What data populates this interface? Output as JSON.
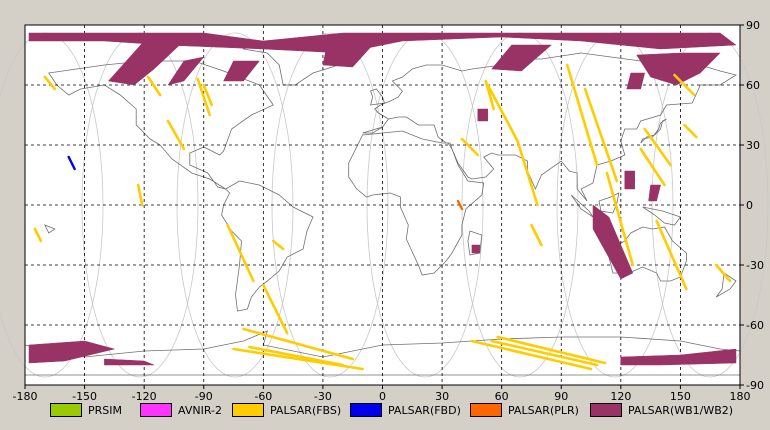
{
  "chart_data": {
    "type": "map",
    "projection": "equirectangular",
    "xlim": [
      -180,
      180
    ],
    "ylim": [
      -90,
      90
    ],
    "x_ticks": [
      "-180",
      "-150",
      "-120",
      "-90",
      "-60",
      "-30",
      "0",
      "30",
      "60",
      "90",
      "120",
      "150",
      "180"
    ],
    "y_ticks": [
      "90",
      "60",
      "30",
      "0",
      "-30",
      "-60",
      "-90"
    ],
    "grid": true,
    "legend": [
      {
        "label": "PRSIM",
        "color": "#99cc00"
      },
      {
        "label": "AVNIR-2",
        "color": "#ff33ff"
      },
      {
        "label": "PALSAR(FBS)",
        "color": "#ffcc00"
      },
      {
        "label": "PALSAR(FBD)",
        "color": "#0000ee"
      },
      {
        "label": "PALSAR(PLR)",
        "color": "#ff6600"
      },
      {
        "label": "PALSAR(WB1/WB2)",
        "color": "#993366"
      }
    ],
    "acquisitions": {
      "wb": [
        {
          "polygon": [
            [
              -178,
              86
            ],
            [
              -90,
              86
            ],
            [
              -60,
              82
            ],
            [
              -20,
              86
            ],
            [
              40,
              86
            ],
            [
              100,
              86
            ],
            [
              170,
              86
            ],
            [
              178,
              80
            ],
            [
              140,
              78
            ],
            [
              100,
              82
            ],
            [
              60,
              84
            ],
            [
              10,
              82
            ],
            [
              -20,
              76
            ],
            [
              -60,
              78
            ],
            [
              -110,
              80
            ],
            [
              -140,
              82
            ],
            [
              -178,
              82
            ]
          ]
        },
        {
          "polygon": [
            [
              -120,
              82
            ],
            [
              -100,
              82
            ],
            [
              -115,
              68
            ],
            [
              -125,
              60
            ],
            [
              -138,
              62
            ]
          ]
        },
        {
          "polygon": [
            [
              -100,
              72
            ],
            [
              -90,
              74
            ],
            [
              -100,
              62
            ],
            [
              -108,
              60
            ]
          ]
        },
        {
          "polygon": [
            [
              -75,
              72
            ],
            [
              -62,
              72
            ],
            [
              -70,
              62
            ],
            [
              -80,
              62
            ]
          ]
        },
        {
          "polygon": [
            [
              -28,
              80
            ],
            [
              -5,
              80
            ],
            [
              -15,
              69
            ],
            [
              -30,
              70
            ]
          ]
        },
        {
          "polygon": [
            [
              65,
              80
            ],
            [
              85,
              80
            ],
            [
              70,
              67
            ],
            [
              55,
              68
            ]
          ]
        },
        {
          "polygon": [
            [
              128,
              75
            ],
            [
              150,
              76
            ],
            [
              170,
              76
            ],
            [
              160,
              66
            ],
            [
              148,
              60
            ],
            [
              135,
              64
            ]
          ]
        },
        {
          "polygon": [
            [
              125,
              66
            ],
            [
              132,
              66
            ],
            [
              130,
              58
            ],
            [
              123,
              58
            ]
          ]
        },
        {
          "polygon": [
            [
              48,
              48
            ],
            [
              53,
              48
            ],
            [
              53,
              42
            ],
            [
              48,
              42
            ]
          ]
        },
        {
          "polygon": [
            [
              122,
              17
            ],
            [
              127,
              17
            ],
            [
              127,
              8
            ],
            [
              122,
              8
            ]
          ]
        },
        {
          "polygon": [
            [
              135,
              10
            ],
            [
              140,
              10
            ],
            [
              138,
              2
            ],
            [
              134,
              2
            ]
          ]
        },
        {
          "polygon": [
            [
              106,
              0
            ],
            [
              114,
              -6
            ],
            [
              126,
              -34
            ],
            [
              120,
              -37
            ],
            [
              106,
              -12
            ]
          ]
        },
        {
          "polygon": [
            [
              45,
              -20
            ],
            [
              49,
              -20
            ],
            [
              49,
              -24
            ],
            [
              45,
              -24
            ]
          ]
        },
        {
          "polygon": [
            [
              -178,
              -70
            ],
            [
              -150,
              -68
            ],
            [
              -135,
              -72
            ],
            [
              -160,
              -78
            ],
            [
              -178,
              -79
            ]
          ]
        },
        {
          "polygon": [
            [
              -140,
              -77
            ],
            [
              -120,
              -78
            ],
            [
              -115,
              -80
            ],
            [
              -140,
              -80
            ]
          ]
        },
        {
          "polygon": [
            [
              120,
              -76
            ],
            [
              150,
              -75
            ],
            [
              178,
              -72
            ],
            [
              178,
              -79
            ],
            [
              140,
              -80
            ],
            [
              120,
              -80
            ]
          ]
        }
      ],
      "fbs": [
        [
          [
            -170,
            64
          ],
          [
            -165,
            58
          ]
        ],
        [
          [
            -123,
            10
          ],
          [
            -121,
            0
          ]
        ],
        [
          [
            -118,
            64
          ],
          [
            -112,
            55
          ]
        ],
        [
          [
            -108,
            42
          ],
          [
            -100,
            28
          ]
        ],
        [
          [
            -93,
            63
          ],
          [
            -87,
            45
          ]
        ],
        [
          [
            -78,
            -10
          ],
          [
            -65,
            -38
          ]
        ],
        [
          [
            -60,
            -40
          ],
          [
            -48,
            -64
          ]
        ],
        [
          [
            -90,
            60
          ],
          [
            -86,
            50
          ]
        ],
        [
          [
            -70,
            -62
          ],
          [
            -15,
            -77
          ]
        ],
        [
          [
            -75,
            -72
          ],
          [
            -10,
            -82
          ]
        ],
        [
          [
            -67,
            -71
          ],
          [
            -20,
            -80
          ]
        ],
        [
          [
            40,
            33
          ],
          [
            48,
            25
          ]
        ],
        [
          [
            53,
            60
          ],
          [
            68,
            32
          ]
        ],
        [
          [
            52,
            62
          ],
          [
            56,
            48
          ]
        ],
        [
          [
            68,
            32
          ],
          [
            78,
            0
          ]
        ],
        [
          [
            75,
            -10
          ],
          [
            80,
            -20
          ]
        ],
        [
          [
            58,
            -66
          ],
          [
            112,
            -79
          ]
        ],
        [
          [
            45,
            -68
          ],
          [
            105,
            -82
          ]
        ],
        [
          [
            55,
            -68
          ],
          [
            108,
            -80
          ]
        ],
        [
          [
            93,
            70
          ],
          [
            108,
            20
          ]
        ],
        [
          [
            102,
            58
          ],
          [
            118,
            12
          ]
        ],
        [
          [
            130,
            28
          ],
          [
            142,
            10
          ]
        ],
        [
          [
            132,
            38
          ],
          [
            145,
            20
          ]
        ],
        [
          [
            113,
            16
          ],
          [
            126,
            -30
          ]
        ],
        [
          [
            138,
            -8
          ],
          [
            153,
            -42
          ]
        ],
        [
          [
            147,
            65
          ],
          [
            157,
            55
          ]
        ],
        [
          [
            152,
            40
          ],
          [
            158,
            34
          ]
        ],
        [
          [
            168,
            -30
          ],
          [
            175,
            -38
          ]
        ],
        [
          [
            -175,
            -12
          ],
          [
            -172,
            -18
          ]
        ],
        [
          [
            -55,
            -18
          ],
          [
            -50,
            -22
          ]
        ]
      ],
      "fbd": [
        [
          [
            -158,
            24
          ],
          [
            -155,
            18
          ]
        ]
      ],
      "plr": [
        [
          [
            38,
            2
          ],
          [
            40,
            -2
          ]
        ]
      ]
    }
  }
}
